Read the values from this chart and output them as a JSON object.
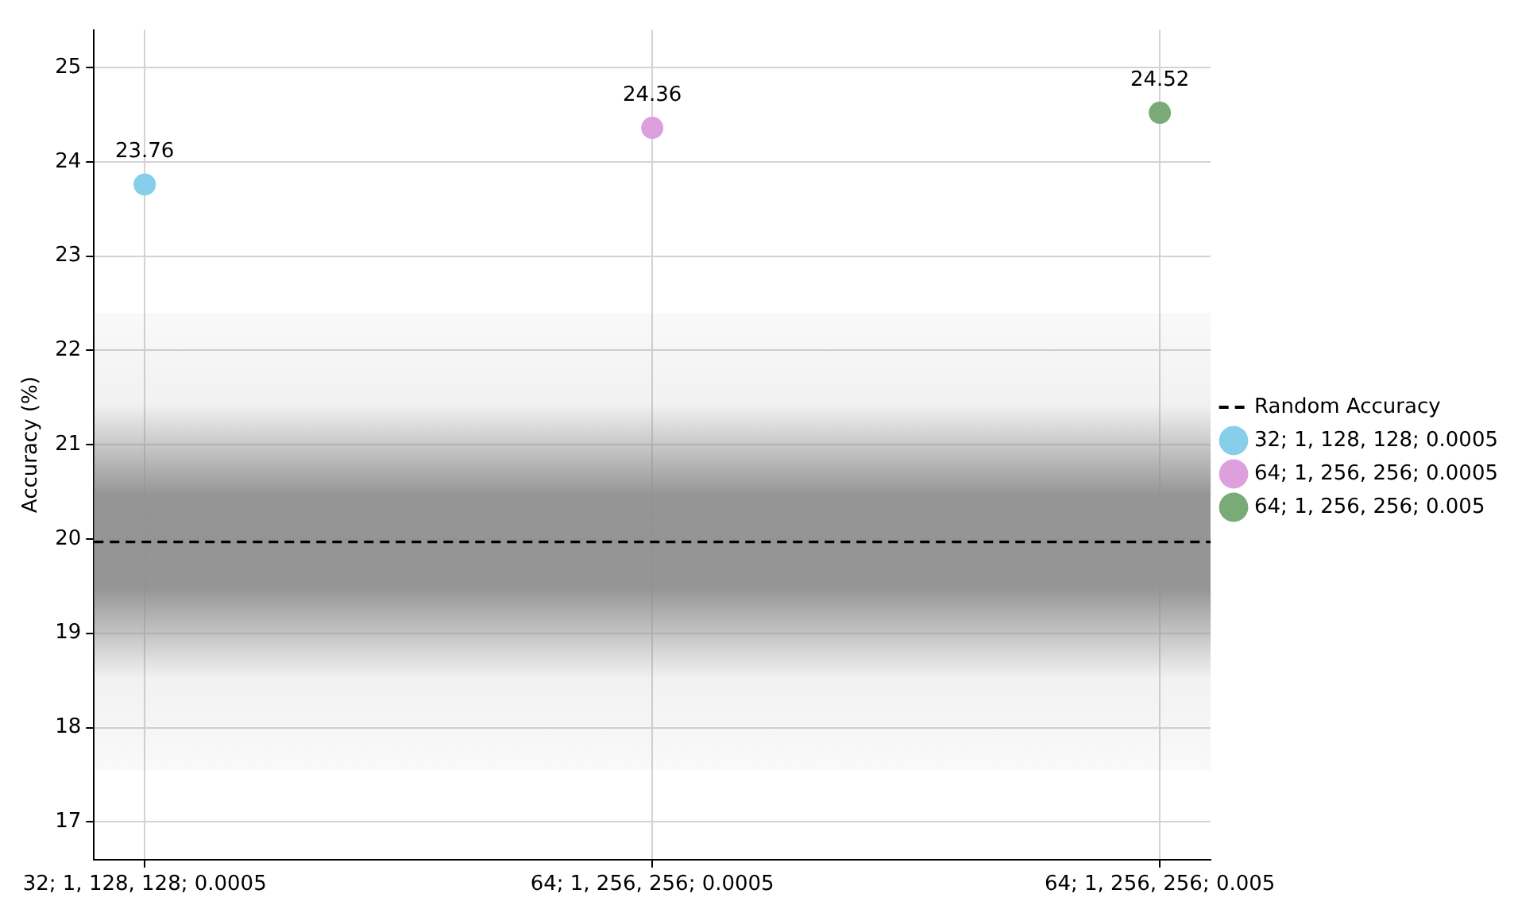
{
  "chart_data": {
    "type": "scatter",
    "ylabel": "Accuracy (%)",
    "categories": [
      "32; 1, 128, 128; 0.0005",
      "64; 1, 256, 256; 0.0005",
      "64; 1, 256, 256; 0.005"
    ],
    "series": [
      {
        "name": "32; 1, 128, 128; 0.0005",
        "color": "#87ceeb",
        "values": [
          23.76,
          null,
          null
        ]
      },
      {
        "name": "64; 1, 256, 256; 0.0005",
        "color": "#dda0dd",
        "values": [
          null,
          24.36,
          null
        ]
      },
      {
        "name": "64; 1, 256, 256; 0.005",
        "color": "#79aa78",
        "values": [
          null,
          null,
          24.52
        ]
      }
    ],
    "ylim": [
      16.6,
      25.4
    ],
    "yticks": [
      17,
      18,
      19,
      20,
      21,
      22,
      23,
      24,
      25
    ],
    "ref_lines": [
      {
        "axis": "y",
        "value": 19.97,
        "label": "Random Accuracy",
        "color": "#000000",
        "line_style": "dashed"
      }
    ],
    "bands": [
      {
        "axis": "y",
        "from": 17.55,
        "to": 22.4,
        "color": "#8f8f8f"
      }
    ],
    "data_labels": true,
    "grid": true,
    "legend": "right",
    "marker": "circle"
  }
}
